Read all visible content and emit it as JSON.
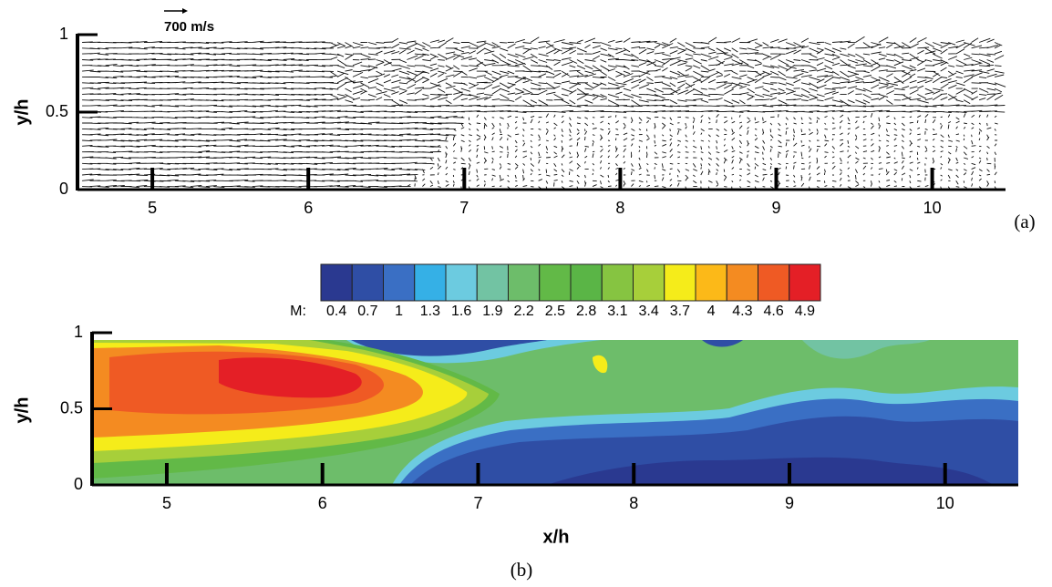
{
  "chart_data": [
    {
      "type": "quiver",
      "reference_label": "700  m/s",
      "ylabel": "y/h",
      "panel_label": "(a)",
      "xlim": [
        4.52,
        10.47
      ],
      "ylim": [
        0,
        1
      ],
      "xticks": [
        5,
        6,
        7,
        8,
        9,
        10
      ],
      "yticks": [
        0,
        0.5,
        1
      ]
    },
    {
      "type": "contour",
      "ylabel": "y/h",
      "xlabel": "x/h",
      "panel_label": "(b)",
      "colorbar_label": "M:",
      "levels": [
        0.4,
        0.7,
        1,
        1.3,
        1.6,
        1.9,
        2.2,
        2.5,
        2.8,
        3.1,
        3.4,
        3.7,
        4,
        4.3,
        4.6,
        4.9
      ],
      "colors": [
        "#2a3990",
        "#2f4ea5",
        "#3a6fc4",
        "#35b0e6",
        "#6ccbe0",
        "#72c3a3",
        "#6dbd6a",
        "#62b947",
        "#5ab546",
        "#86c441",
        "#a7cf3a",
        "#f5ec1a",
        "#fcb918",
        "#f48b21",
        "#ef5a24",
        "#e41f26"
      ],
      "xlim": [
        4.52,
        10.47
      ],
      "ylim": [
        0,
        1
      ],
      "xticks": [
        5,
        6,
        7,
        8,
        9,
        10
      ],
      "yticks": [
        0,
        0.5,
        1
      ]
    }
  ]
}
